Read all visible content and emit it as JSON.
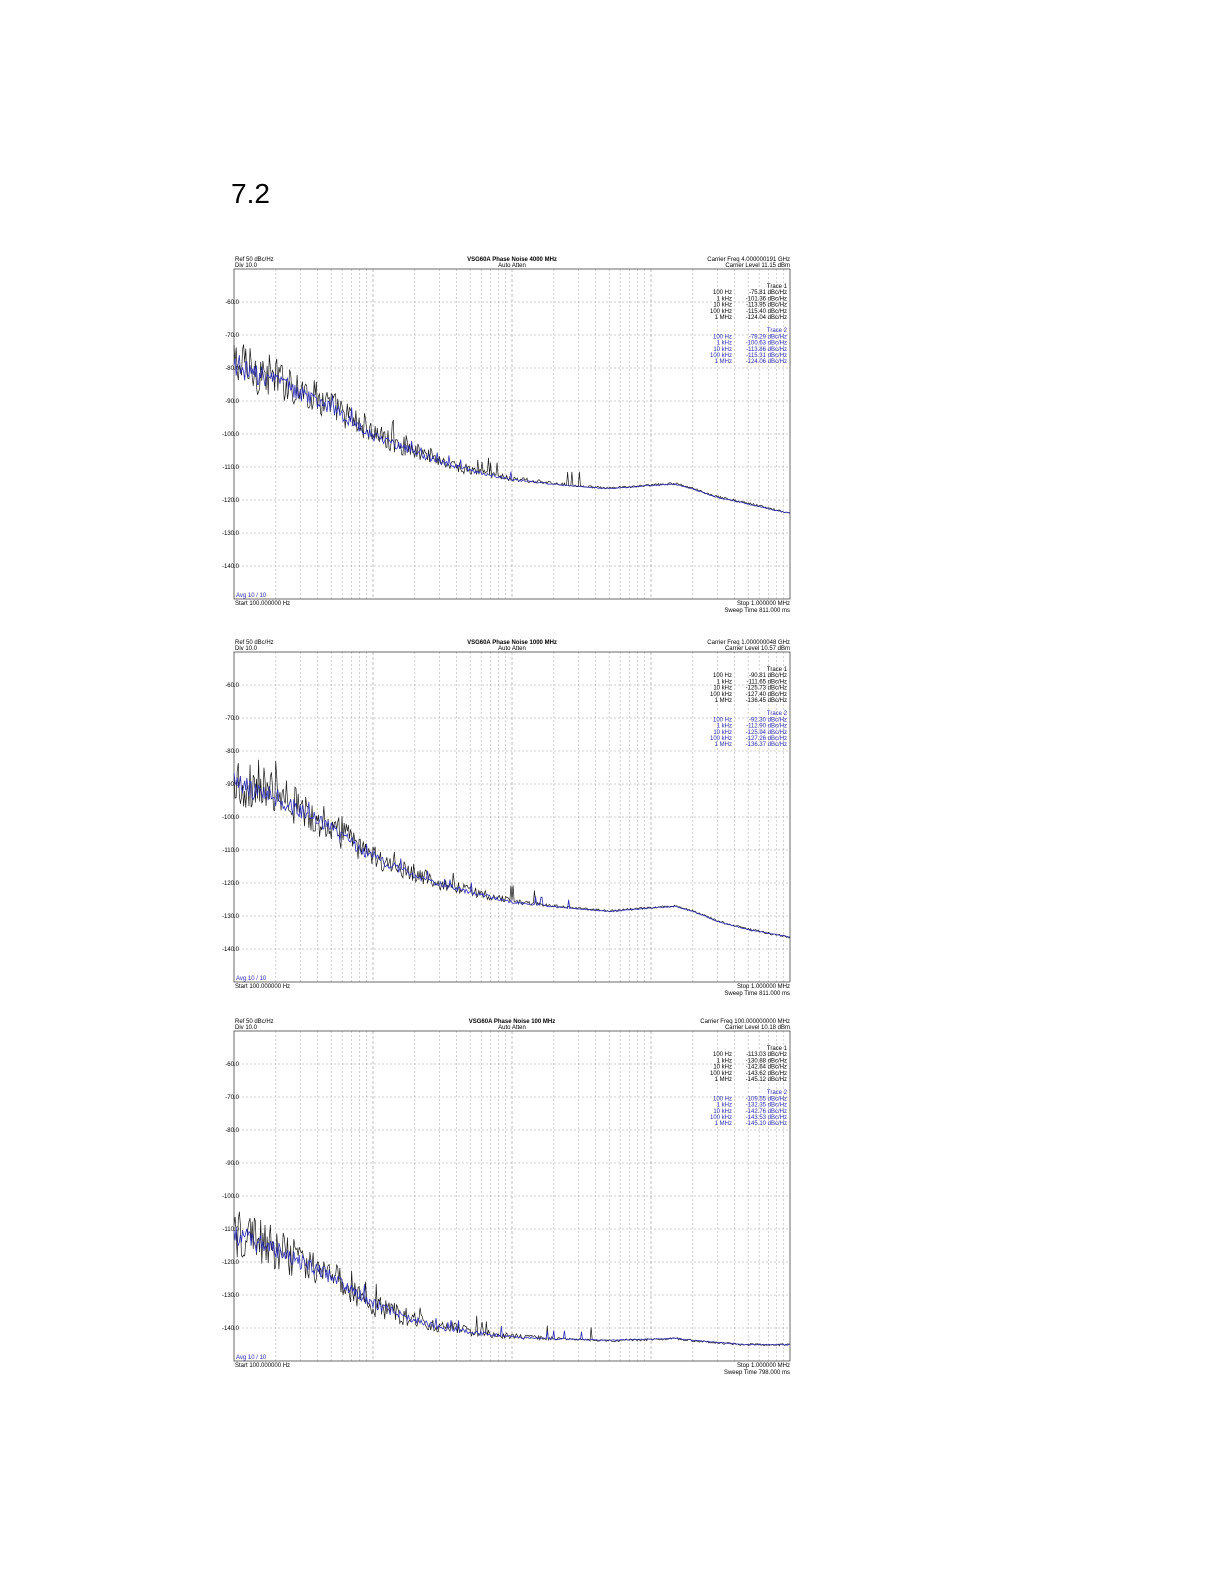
{
  "page": {
    "section_number": "7.2"
  },
  "chart_data": [
    {
      "type": "line",
      "title": "VSG60A Phase Noise 4000 MHz",
      "subtitle": "Auto Atten",
      "header_left": [
        "Ref 50 dBc/Hz",
        "Div 10.0"
      ],
      "header_right": [
        "Carrier Freq 4.000000191 GHz",
        "Carrier Level 11.15 dBm"
      ],
      "footer_left": [
        "Avg 10 / 10",
        "Start 100.000000 Hz"
      ],
      "footer_right": [
        "Stop 1.000000 MHz",
        "Sweep Time 811.000 ms"
      ],
      "x_scale": "log",
      "xlim": [
        100,
        1000000
      ],
      "ylim": [
        -150,
        -50
      ],
      "y_ticks": [
        -60,
        -70,
        -80,
        -90,
        -100,
        -110,
        -120,
        -130,
        -140
      ],
      "y_tick_labels": [
        "-60.0",
        "-70.0",
        "-80.0",
        "-90.0",
        "-100.0",
        "-110.0",
        "-120.0",
        "-130.0",
        "-140.0"
      ],
      "colors": {
        "trace1": "#1a1a1a",
        "trace2": "#2f2fb4"
      },
      "legend": [
        {
          "name": "Trace 1",
          "rows": [
            [
              "100 Hz",
              "-75.81 dBc/Hz"
            ],
            [
              "1 kHz",
              "-101.36 dBc/Hz"
            ],
            [
              "10 kHz",
              "-113.95 dBc/Hz"
            ],
            [
              "100 kHz",
              "-115.40 dBc/Hz"
            ],
            [
              "1 MHz",
              "-124.04 dBc/Hz"
            ]
          ]
        },
        {
          "name": "Trace 2",
          "rows": [
            [
              "100 Hz",
              "-78.29 dBc/Hz"
            ],
            [
              "1 kHz",
              "-100.63 dBc/Hz"
            ],
            [
              "10 kHz",
              "-113.86 dBc/Hz"
            ],
            [
              "100 kHz",
              "-115.31 dBc/Hz"
            ],
            [
              "1 MHz",
              "-124.06 dBc/Hz"
            ]
          ]
        }
      ],
      "series": [
        {
          "name": "Trace 1",
          "x": [
            100,
            200,
            500,
            1000,
            2000,
            3000,
            5000,
            10000,
            20000,
            50000,
            100000,
            150000,
            200000,
            300000,
            500000,
            1000000
          ],
          "y": [
            -79,
            -83,
            -91,
            -100,
            -105,
            -108,
            -111,
            -113.5,
            -115,
            -116.5,
            -115.5,
            -115,
            -116.5,
            -119,
            -121,
            -124
          ]
        },
        {
          "name": "Trace 2",
          "x": [
            100,
            200,
            500,
            1000,
            2000,
            3000,
            5000,
            10000,
            20000,
            50000,
            100000,
            150000,
            200000,
            300000,
            500000,
            1000000
          ],
          "y": [
            -80,
            -84,
            -92,
            -100.5,
            -105.5,
            -108.5,
            -111,
            -113.8,
            -115.2,
            -116.6,
            -115.6,
            -115.2,
            -116.7,
            -119.2,
            -121.2,
            -124.1
          ]
        }
      ]
    },
    {
      "type": "line",
      "title": "VSG60A Phase Noise 1000 MHz",
      "subtitle": "Auto Atten",
      "header_left": [
        "Ref 50 dBc/Hz",
        "Div 10.0"
      ],
      "header_right": [
        "Carrier Freq 1.000000048 GHz",
        "Carrier Level 10.57 dBm"
      ],
      "footer_left": [
        "Avg 10 / 10",
        "Start 100.000000 Hz"
      ],
      "footer_right": [
        "Stop 1.000000 MHz",
        "Sweep Time 811.000 ms"
      ],
      "x_scale": "log",
      "xlim": [
        100,
        1000000
      ],
      "ylim": [
        -150,
        -50
      ],
      "y_ticks": [
        -60,
        -70,
        -80,
        -90,
        -100,
        -110,
        -120,
        -130,
        -140
      ],
      "y_tick_labels": [
        "-60.0",
        "-70.0",
        "-80.0",
        "-90.0",
        "-100.0",
        "-110.0",
        "-120.0",
        "-130.0",
        "-140.0"
      ],
      "colors": {
        "trace1": "#1a1a1a",
        "trace2": "#2f2fb4"
      },
      "legend": [
        {
          "name": "Trace 1",
          "rows": [
            [
              "100 Hz",
              "-90.81 dBc/Hz"
            ],
            [
              "1 kHz",
              "-111.65 dBc/Hz"
            ],
            [
              "10 kHz",
              "-125.73 dBc/Hz"
            ],
            [
              "100 kHz",
              "-127.40 dBc/Hz"
            ],
            [
              "1 MHz",
              "-136.45 dBc/Hz"
            ]
          ]
        },
        {
          "name": "Trace 2",
          "rows": [
            [
              "100 Hz",
              "-92.30 dBc/Hz"
            ],
            [
              "1 kHz",
              "-112.90 dBc/Hz"
            ],
            [
              "10 kHz",
              "-125.94 dBc/Hz"
            ],
            [
              "100 kHz",
              "-127.26 dBc/Hz"
            ],
            [
              "1 MHz",
              "-136.37 dBc/Hz"
            ]
          ]
        }
      ],
      "series": [
        {
          "name": "Trace 1",
          "x": [
            100,
            200,
            500,
            1000,
            2000,
            3000,
            5000,
            10000,
            20000,
            50000,
            100000,
            150000,
            200000,
            300000,
            500000,
            1000000
          ],
          "y": [
            -89,
            -93,
            -103,
            -112,
            -117,
            -120,
            -122.5,
            -125.5,
            -127,
            -128.5,
            -127.5,
            -127,
            -128.5,
            -131.5,
            -134,
            -136.5
          ]
        },
        {
          "name": "Trace 2",
          "x": [
            100,
            200,
            500,
            1000,
            2000,
            3000,
            5000,
            10000,
            20000,
            50000,
            100000,
            150000,
            200000,
            300000,
            500000,
            1000000
          ],
          "y": [
            -90,
            -94,
            -103.5,
            -112.5,
            -117.5,
            -120.3,
            -122.8,
            -125.8,
            -127.2,
            -128.6,
            -127.6,
            -127.1,
            -128.6,
            -131.6,
            -134.1,
            -136.4
          ]
        }
      ]
    },
    {
      "type": "line",
      "title": "VSG60A Phase Noise 100 MHz",
      "subtitle": "Auto Atten",
      "header_left": [
        "Ref 50 dBc/Hz",
        "Div 10.0"
      ],
      "header_right": [
        "Carrier Freq 100.000000000 MHz",
        "Carrier Level 10.18 dBm"
      ],
      "footer_left": [
        "Avg 10 / 10",
        "Start 100.000000 Hz"
      ],
      "footer_right": [
        "Stop 1.000000 MHz",
        "Sweep Time 798.000 ms"
      ],
      "x_scale": "log",
      "xlim": [
        100,
        1000000
      ],
      "ylim": [
        -150,
        -50
      ],
      "y_ticks": [
        -60,
        -70,
        -80,
        -90,
        -100,
        -110,
        -120,
        -130,
        -140
      ],
      "y_tick_labels": [
        "-60.0",
        "-70.0",
        "-80.0",
        "-90.0",
        "-100.0",
        "-110.0",
        "-120.0",
        "-130.0",
        "-140.0"
      ],
      "colors": {
        "trace1": "#1a1a1a",
        "trace2": "#2f2fb4"
      },
      "legend": [
        {
          "name": "Trace 1",
          "rows": [
            [
              "100 Hz",
              "-113.03 dBc/Hz"
            ],
            [
              "1 kHz",
              "-130.88 dBc/Hz"
            ],
            [
              "10 kHz",
              "-142.64 dBc/Hz"
            ],
            [
              "100 kHz",
              "-143.62 dBc/Hz"
            ],
            [
              "1 MHz",
              "-145.12 dBc/Hz"
            ]
          ]
        },
        {
          "name": "Trace 2",
          "rows": [
            [
              "100 Hz",
              "-109.55 dBc/Hz"
            ],
            [
              "1 kHz",
              "-132.35 dBc/Hz"
            ],
            [
              "10 kHz",
              "-142.76 dBc/Hz"
            ],
            [
              "100 kHz",
              "-143.53 dBc/Hz"
            ],
            [
              "1 MHz",
              "-145.10 dBc/Hz"
            ]
          ]
        }
      ],
      "series": [
        {
          "name": "Trace 1",
          "x": [
            100,
            200,
            500,
            1000,
            2000,
            3000,
            5000,
            10000,
            20000,
            50000,
            100000,
            150000,
            200000,
            300000,
            500000,
            1000000
          ],
          "y": [
            -111,
            -116,
            -124,
            -133,
            -137.5,
            -139.5,
            -141,
            -142.5,
            -143.2,
            -143.8,
            -143.5,
            -143.2,
            -143.8,
            -144.5,
            -145,
            -145.1
          ]
        },
        {
          "name": "Trace 2",
          "x": [
            100,
            200,
            500,
            1000,
            2000,
            3000,
            5000,
            10000,
            20000,
            50000,
            100000,
            150000,
            200000,
            300000,
            500000,
            1000000
          ],
          "y": [
            -111.5,
            -116.5,
            -124.5,
            -132.5,
            -137.8,
            -139.8,
            -141.2,
            -142.7,
            -143.3,
            -143.7,
            -143.4,
            -143.1,
            -143.7,
            -144.4,
            -145,
            -145.1
          ]
        }
      ]
    }
  ]
}
